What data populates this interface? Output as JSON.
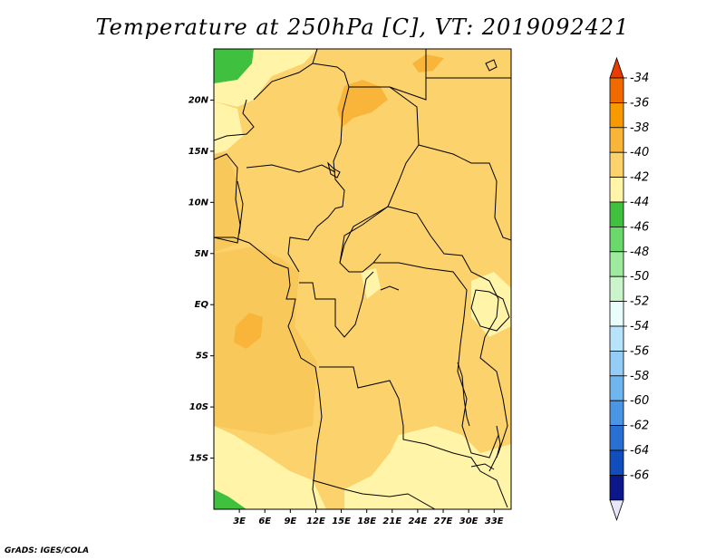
{
  "title": "Temperature at 250hPa [C], VT: 2019092421",
  "credit": "GrADS: IGES/COLA",
  "chart_data": {
    "type": "heatmap",
    "title": "Temperature at 250hPa [C], VT: 2019092421",
    "units": "C",
    "valid_time": "2019092421",
    "lon_range": [
      0,
      35
    ],
    "lat_range": [
      -20,
      25
    ],
    "x_ticks": [
      "3E",
      "6E",
      "9E",
      "12E",
      "15E",
      "18E",
      "21E",
      "24E",
      "27E",
      "30E",
      "33E"
    ],
    "y_ticks": [
      "20N",
      "15N",
      "10N",
      "5N",
      "EQ",
      "5S",
      "10S",
      "15S"
    ],
    "colorbar": {
      "levels": [
        "-34",
        "-36",
        "-38",
        "-40",
        "-42",
        "-44",
        "-46",
        "-48",
        "-50",
        "-52",
        "-54",
        "-56",
        "-58",
        "-60",
        "-62",
        "-64",
        "-66"
      ],
      "colors": [
        "#e83c00",
        "#f06a00",
        "#f79a00",
        "#f9b53a",
        "#fbd26b",
        "#fff4a8",
        "#3fc13f",
        "#6ad86a",
        "#9eea9e",
        "#caf5ca",
        "#eafdfd",
        "#b7e4fb",
        "#93cdf6",
        "#6fb6ee",
        "#4a96e4",
        "#2a6fd2",
        "#124ebb",
        "#0c188a",
        "#e6e6f8"
      ]
    },
    "grid": false
  }
}
